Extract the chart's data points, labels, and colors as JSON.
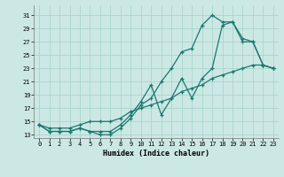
{
  "xlabel": "Humidex (Indice chaleur)",
  "bg_color": "#cce8e4",
  "grid_color": "#aad4ce",
  "line_color": "#1a7870",
  "xlim": [
    -0.5,
    23.5
  ],
  "ylim": [
    12.5,
    32.5
  ],
  "xticks": [
    0,
    1,
    2,
    3,
    4,
    5,
    6,
    7,
    8,
    9,
    10,
    11,
    12,
    13,
    14,
    15,
    16,
    17,
    18,
    19,
    20,
    21,
    22,
    23
  ],
  "yticks": [
    13,
    15,
    17,
    19,
    21,
    23,
    25,
    27,
    29,
    31
  ],
  "line1": {
    "x": [
      0,
      1,
      2,
      3,
      4,
      5,
      6,
      7,
      8,
      9,
      10,
      11,
      12,
      13,
      14,
      15,
      16,
      17,
      18,
      19,
      20,
      21,
      22,
      23
    ],
    "y": [
      14.5,
      13.5,
      13.5,
      13.5,
      14.0,
      13.5,
      13.0,
      13.0,
      14.0,
      15.5,
      17.5,
      18.5,
      21.0,
      23.0,
      25.5,
      26.0,
      29.5,
      31.0,
      30.0,
      30.0,
      27.5,
      27.0,
      23.5,
      23.0
    ]
  },
  "line2": {
    "x": [
      0,
      1,
      2,
      3,
      4,
      5,
      6,
      7,
      8,
      9,
      10,
      11,
      12,
      13,
      14,
      15,
      16,
      17,
      18,
      19,
      20,
      21,
      22,
      23
    ],
    "y": [
      14.5,
      13.5,
      13.5,
      13.5,
      14.0,
      13.5,
      13.5,
      13.5,
      14.5,
      16.0,
      18.0,
      20.5,
      16.0,
      18.5,
      21.5,
      18.5,
      21.5,
      23.0,
      29.5,
      30.0,
      27.0,
      27.0,
      23.5,
      23.0
    ]
  },
  "line3": {
    "x": [
      0,
      1,
      2,
      3,
      4,
      5,
      6,
      7,
      8,
      9,
      10,
      11,
      12,
      13,
      14,
      15,
      16,
      17,
      18,
      19,
      20,
      21,
      22,
      23
    ],
    "y": [
      14.5,
      14.0,
      14.0,
      14.0,
      14.5,
      15.0,
      15.0,
      15.0,
      15.5,
      16.5,
      17.0,
      17.5,
      18.0,
      18.5,
      19.5,
      20.0,
      20.5,
      21.5,
      22.0,
      22.5,
      23.0,
      23.5,
      23.5,
      23.0
    ]
  },
  "xlabel_fontsize": 6.0,
  "tick_fontsize": 5.0
}
